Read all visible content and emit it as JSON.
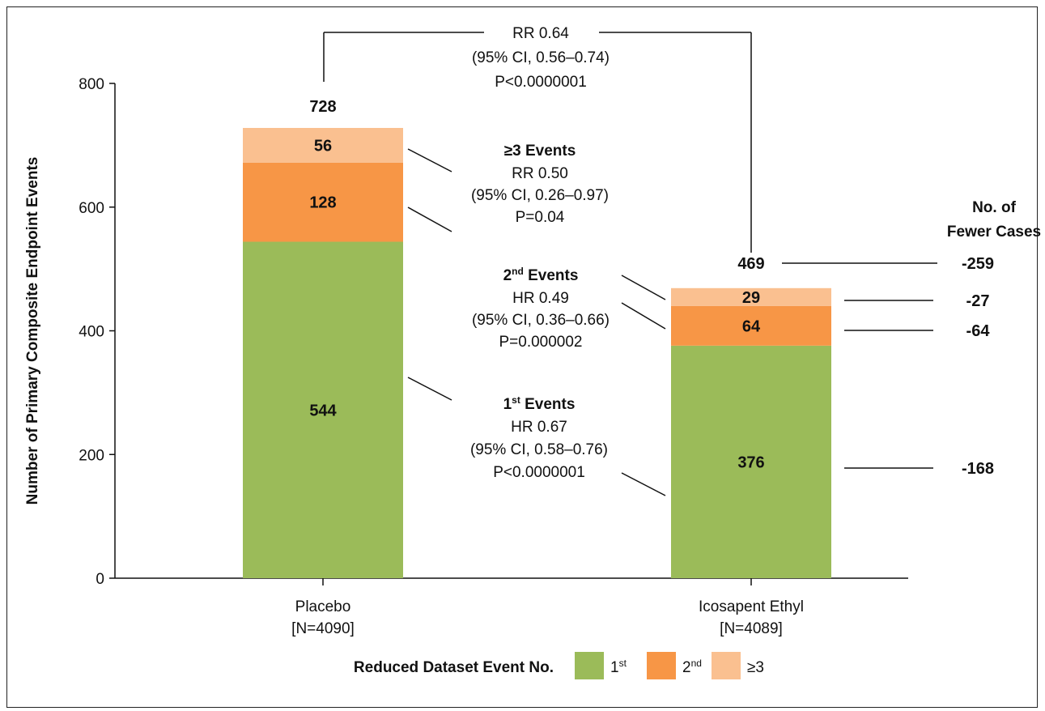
{
  "chart_data": {
    "type": "bar",
    "stacked": true,
    "categories": [
      "Placebo\n[N=4090]",
      "Icosapent Ethyl\n[N=4089]"
    ],
    "category_lines": [
      [
        "Placebo",
        "[N=4090]"
      ],
      [
        "Icosapent Ethyl",
        "[N=4089]"
      ]
    ],
    "series": [
      {
        "name": "1st",
        "values": [
          544,
          376
        ],
        "color": "#9BBB59"
      },
      {
        "name": "2nd",
        "values": [
          128,
          64
        ],
        "color": "#F79646"
      },
      {
        "name": "≥3",
        "values": [
          56,
          29
        ],
        "color": "#FAC090"
      }
    ],
    "segment_labels": [
      [
        "544",
        "376"
      ],
      [
        "128",
        "64"
      ],
      [
        "56",
        "29"
      ]
    ],
    "totals": [
      728,
      469
    ],
    "total_labels": [
      "728",
      "469"
    ],
    "ylabel": "Number of Primary Composite Endpoint Events",
    "ylim": [
      0,
      800
    ],
    "yticks": [
      0,
      200,
      400,
      600,
      800
    ],
    "grid": false,
    "legend": {
      "title": "Reduced Dataset Event No.",
      "placement": "bottom-center",
      "items": [
        {
          "base": "1",
          "sup": "st",
          "color": "#9BBB59"
        },
        {
          "base": "2",
          "sup": "nd",
          "color": "#F79646"
        },
        {
          "base": "≥3",
          "sup": "",
          "color": "#FAC090"
        }
      ]
    },
    "overall_annotation": [
      "RR 0.64",
      "(95% CI, 0.56–0.74)",
      "P<0.0000001"
    ],
    "annotations": {
      "ge3": {
        "title": "≥3 Events",
        "lines": [
          "RR 0.50",
          "(95% CI, 0.26–0.97)",
          "P=0.04"
        ]
      },
      "second": {
        "title_base": "2",
        "title_sup": "nd",
        "title_rest": " Events",
        "lines": [
          "HR 0.49",
          "(95% CI, 0.36–0.66)",
          "P=0.000002"
        ]
      },
      "first": {
        "title_base": "1",
        "title_sup": "st",
        "title_rest": " Events",
        "lines": [
          "HR 0.67",
          "(95% CI, 0.58–0.76)",
          "P<0.0000001"
        ]
      }
    },
    "fewer_cases": {
      "header": [
        "No. of",
        "Fewer Cases"
      ],
      "total": "-259",
      "ge3": "-27",
      "second": "-64",
      "first": "-168"
    }
  }
}
